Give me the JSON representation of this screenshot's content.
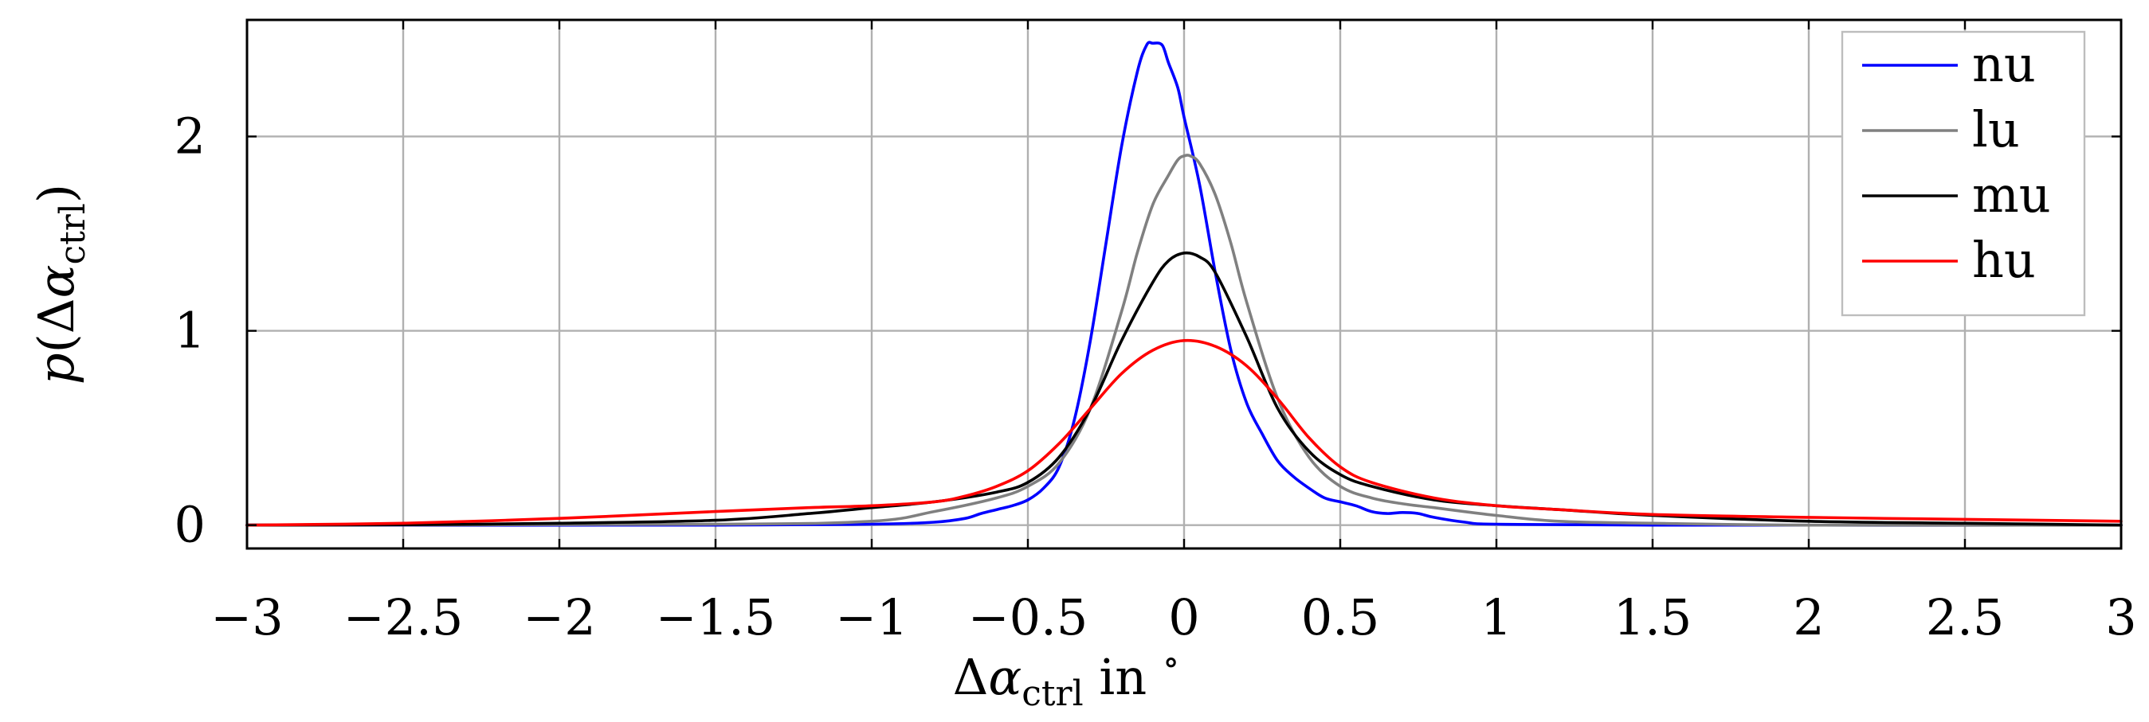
{
  "chart_data": {
    "type": "line",
    "title": "",
    "xlabel": "Δα_ctrl in °",
    "xlabel_parts": {
      "delta": "Δ",
      "alpha": "α",
      "sub": "ctrl",
      "suffix": " in ",
      "degree": "∘"
    },
    "ylabel": "p(Δα_ctrl)",
    "ylabel_parts": {
      "p": "p",
      "open": "(",
      "delta": "Δ",
      "alpha": "α",
      "sub": "ctrl",
      "close": ")"
    },
    "xlim": [
      -3,
      3
    ],
    "ylim": [
      -0.12,
      2.6
    ],
    "xticks": [
      -3,
      -2.5,
      -2,
      -1.5,
      -1,
      -0.5,
      0,
      0.5,
      1,
      1.5,
      2,
      2.5,
      3
    ],
    "xtick_labels": [
      "−3",
      "−2.5",
      "−2",
      "−1.5",
      "−1",
      "−0.5",
      "0",
      "0.5",
      "1",
      "1.5",
      "2",
      "2.5",
      "3"
    ],
    "yticks": [
      0,
      1,
      2
    ],
    "ytick_labels": [
      "0",
      "1",
      "2"
    ],
    "grid": true,
    "legend_position": "top-right",
    "series": [
      {
        "name": "nu",
        "color": "#0000ff",
        "x": [
          -3,
          -1.5,
          -1.0,
          -0.8,
          -0.7,
          -0.65,
          -0.6,
          -0.55,
          -0.5,
          -0.45,
          -0.4,
          -0.35,
          -0.3,
          -0.25,
          -0.2,
          -0.15,
          -0.12,
          -0.1,
          -0.07,
          -0.05,
          -0.02,
          0,
          0.05,
          0.1,
          0.15,
          0.2,
          0.25,
          0.3,
          0.35,
          0.4,
          0.45,
          0.5,
          0.55,
          0.6,
          0.65,
          0.7,
          0.75,
          0.8,
          0.9,
          1.0,
          1.5,
          3
        ],
        "y": [
          0,
          0,
          0.005,
          0.015,
          0.035,
          0.06,
          0.08,
          0.1,
          0.13,
          0.19,
          0.3,
          0.55,
          0.95,
          1.45,
          1.95,
          2.33,
          2.47,
          2.48,
          2.47,
          2.38,
          2.25,
          2.1,
          1.75,
          1.3,
          0.9,
          0.63,
          0.47,
          0.33,
          0.25,
          0.19,
          0.14,
          0.12,
          0.1,
          0.07,
          0.06,
          0.065,
          0.06,
          0.04,
          0.015,
          0.005,
          0,
          0
        ]
      },
      {
        "name": "lu",
        "color": "#808080",
        "x": [
          -3,
          -1.5,
          -1.0,
          -0.8,
          -0.6,
          -0.5,
          -0.4,
          -0.3,
          -0.2,
          -0.15,
          -0.1,
          -0.05,
          -0.02,
          0,
          0.02,
          0.05,
          0.1,
          0.15,
          0.2,
          0.3,
          0.4,
          0.5,
          0.6,
          0.7,
          0.8,
          1.0,
          1.2,
          1.5,
          2.0,
          3
        ],
        "y": [
          0,
          0.005,
          0.02,
          0.07,
          0.14,
          0.2,
          0.32,
          0.6,
          1.1,
          1.4,
          1.65,
          1.8,
          1.88,
          1.9,
          1.9,
          1.86,
          1.7,
          1.45,
          1.15,
          0.65,
          0.35,
          0.2,
          0.14,
          0.11,
          0.09,
          0.05,
          0.02,
          0.01,
          0,
          0
        ]
      },
      {
        "name": "mu",
        "color": "#000000",
        "x": [
          -3,
          -2.5,
          -2.0,
          -1.5,
          -1.2,
          -1.0,
          -0.8,
          -0.6,
          -0.5,
          -0.4,
          -0.3,
          -0.2,
          -0.1,
          -0.05,
          0,
          0.05,
          0.1,
          0.2,
          0.3,
          0.4,
          0.5,
          0.6,
          0.8,
          1.0,
          1.2,
          1.5,
          2.0,
          2.5,
          3
        ],
        "y": [
          0,
          0.002,
          0.01,
          0.025,
          0.06,
          0.09,
          0.12,
          0.17,
          0.22,
          0.35,
          0.6,
          0.95,
          1.25,
          1.36,
          1.4,
          1.38,
          1.3,
          0.97,
          0.6,
          0.38,
          0.26,
          0.2,
          0.13,
          0.1,
          0.08,
          0.05,
          0.02,
          0.01,
          0
        ]
      },
      {
        "name": "hu",
        "color": "#ff0000",
        "x": [
          -3,
          -2.5,
          -2.0,
          -1.5,
          -1.2,
          -1.0,
          -0.8,
          -0.7,
          -0.6,
          -0.5,
          -0.4,
          -0.3,
          -0.2,
          -0.1,
          0,
          0.1,
          0.2,
          0.3,
          0.4,
          0.5,
          0.6,
          0.8,
          1.0,
          1.2,
          1.5,
          2.0,
          2.5,
          3
        ],
        "y": [
          0,
          0.01,
          0.035,
          0.07,
          0.09,
          0.1,
          0.12,
          0.15,
          0.2,
          0.28,
          0.42,
          0.6,
          0.78,
          0.9,
          0.95,
          0.92,
          0.82,
          0.65,
          0.45,
          0.3,
          0.22,
          0.14,
          0.1,
          0.08,
          0.055,
          0.04,
          0.03,
          0.02
        ]
      }
    ]
  }
}
